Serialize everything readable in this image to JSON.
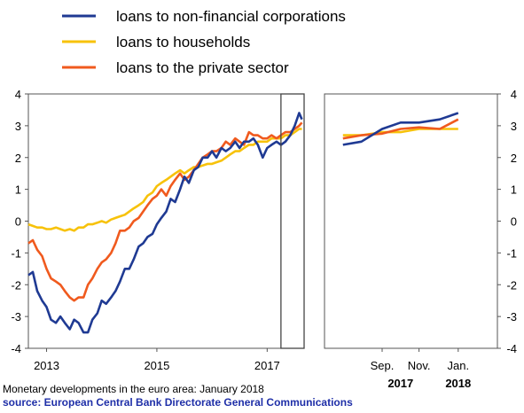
{
  "caption": {
    "title": "Monetary developments in the euro area: January 2018",
    "source": "source: European Central Bank Directorate General Communications"
  },
  "chart_data": {
    "type": "line",
    "legend_position": "top-left",
    "series_meta": [
      {
        "name": "loans to non-financial corporations",
        "color": "#1f3a93"
      },
      {
        "name": "loans to households",
        "color": "#f7c20a"
      },
      {
        "name": "loans to the private sector",
        "color": "#f05a1e"
      }
    ],
    "panels": [
      {
        "name": "left",
        "x_range": [
          2012.67,
          2017.67
        ],
        "ylim": [
          -4,
          4
        ],
        "yticks": [
          -4,
          -3,
          -2,
          -1,
          0,
          1,
          2,
          3,
          4
        ],
        "xtick_labels": [
          {
            "x": 2013,
            "label": "2013"
          },
          {
            "x": 2015,
            "label": "2015"
          },
          {
            "x": 2017,
            "label": "2017"
          }
        ],
        "grid": false,
        "highlight_box": {
          "x_from": 2017.25,
          "x_to": 2017.67
        },
        "series": [
          {
            "name": "loans to non-financial corporations",
            "x": [
              2012.67,
              2012.75,
              2012.83,
              2012.92,
              2013.0,
              2013.08,
              2013.17,
              2013.25,
              2013.33,
              2013.42,
              2013.5,
              2013.58,
              2013.67,
              2013.75,
              2013.83,
              2013.92,
              2014.0,
              2014.08,
              2014.17,
              2014.25,
              2014.33,
              2014.42,
              2014.5,
              2014.58,
              2014.67,
              2014.75,
              2014.83,
              2014.92,
              2015.0,
              2015.08,
              2015.17,
              2015.25,
              2015.33,
              2015.42,
              2015.5,
              2015.58,
              2015.67,
              2015.75,
              2015.83,
              2015.92,
              2016.0,
              2016.08,
              2016.17,
              2016.25,
              2016.33,
              2016.42,
              2016.5,
              2016.58,
              2016.67,
              2016.75,
              2016.83,
              2016.92,
              2017.0,
              2017.08,
              2017.17,
              2017.25,
              2017.33,
              2017.42,
              2017.5,
              2017.58,
              2017.63
            ],
            "values": [
              -1.7,
              -1.6,
              -2.2,
              -2.5,
              -2.7,
              -3.1,
              -3.2,
              -3.0,
              -3.2,
              -3.4,
              -3.1,
              -3.2,
              -3.5,
              -3.5,
              -3.1,
              -2.9,
              -2.5,
              -2.6,
              -2.4,
              -2.2,
              -1.9,
              -1.5,
              -1.5,
              -1.2,
              -0.8,
              -0.7,
              -0.5,
              -0.4,
              -0.1,
              0.1,
              0.3,
              0.7,
              0.6,
              1.0,
              1.4,
              1.2,
              1.6,
              1.7,
              2.0,
              2.0,
              2.2,
              2.0,
              2.3,
              2.2,
              2.3,
              2.5,
              2.3,
              2.5,
              2.5,
              2.6,
              2.4,
              2.0,
              2.3,
              2.4,
              2.5,
              2.4,
              2.5,
              2.7,
              3.0,
              3.4,
              3.2
            ]
          },
          {
            "name": "loans to households",
            "x": [
              2012.67,
              2012.75,
              2012.83,
              2012.92,
              2013.0,
              2013.08,
              2013.17,
              2013.25,
              2013.33,
              2013.42,
              2013.5,
              2013.58,
              2013.67,
              2013.75,
              2013.83,
              2013.92,
              2014.0,
              2014.08,
              2014.17,
              2014.25,
              2014.33,
              2014.42,
              2014.5,
              2014.58,
              2014.67,
              2014.75,
              2014.83,
              2014.92,
              2015.0,
              2015.08,
              2015.17,
              2015.25,
              2015.33,
              2015.42,
              2015.5,
              2015.58,
              2015.67,
              2015.75,
              2015.83,
              2015.92,
              2016.0,
              2016.08,
              2016.17,
              2016.25,
              2016.33,
              2016.42,
              2016.5,
              2016.58,
              2016.67,
              2016.75,
              2016.83,
              2016.92,
              2017.0,
              2017.08,
              2017.17,
              2017.25,
              2017.33,
              2017.42,
              2017.5,
              2017.58,
              2017.63
            ],
            "values": [
              -0.1,
              -0.15,
              -0.2,
              -0.2,
              -0.25,
              -0.25,
              -0.2,
              -0.25,
              -0.3,
              -0.25,
              -0.3,
              -0.2,
              -0.2,
              -0.1,
              -0.1,
              -0.05,
              0.0,
              -0.05,
              0.05,
              0.1,
              0.15,
              0.2,
              0.3,
              0.4,
              0.5,
              0.6,
              0.8,
              0.9,
              1.1,
              1.2,
              1.3,
              1.4,
              1.5,
              1.6,
              1.5,
              1.6,
              1.7,
              1.7,
              1.75,
              1.8,
              1.8,
              1.85,
              1.9,
              2.0,
              2.1,
              2.2,
              2.2,
              2.3,
              2.4,
              2.4,
              2.5,
              2.5,
              2.5,
              2.6,
              2.6,
              2.6,
              2.7,
              2.7,
              2.8,
              2.9,
              2.9
            ]
          },
          {
            "name": "loans to the private sector",
            "x": [
              2012.67,
              2012.75,
              2012.83,
              2012.92,
              2013.0,
              2013.08,
              2013.17,
              2013.25,
              2013.33,
              2013.42,
              2013.5,
              2013.58,
              2013.67,
              2013.75,
              2013.83,
              2013.92,
              2014.0,
              2014.08,
              2014.17,
              2014.25,
              2014.33,
              2014.42,
              2014.5,
              2014.58,
              2014.67,
              2014.75,
              2014.83,
              2014.92,
              2015.0,
              2015.08,
              2015.17,
              2015.25,
              2015.33,
              2015.42,
              2015.5,
              2015.58,
              2015.67,
              2015.75,
              2015.83,
              2015.92,
              2016.0,
              2016.08,
              2016.17,
              2016.25,
              2016.33,
              2016.42,
              2016.5,
              2016.58,
              2016.67,
              2016.75,
              2016.83,
              2016.92,
              2017.0,
              2017.08,
              2017.17,
              2017.25,
              2017.33,
              2017.42,
              2017.5,
              2017.58,
              2017.63
            ],
            "values": [
              -0.7,
              -0.6,
              -0.9,
              -1.1,
              -1.5,
              -1.8,
              -1.9,
              -2.0,
              -2.2,
              -2.4,
              -2.5,
              -2.4,
              -2.4,
              -2.0,
              -1.8,
              -1.5,
              -1.3,
              -1.2,
              -1.0,
              -0.7,
              -0.3,
              -0.3,
              -0.2,
              0.0,
              0.1,
              0.3,
              0.5,
              0.7,
              0.8,
              1.0,
              0.8,
              1.1,
              1.3,
              1.5,
              1.3,
              1.4,
              1.6,
              1.8,
              2.0,
              2.1,
              2.2,
              2.2,
              2.3,
              2.5,
              2.4,
              2.6,
              2.5,
              2.4,
              2.8,
              2.7,
              2.7,
              2.6,
              2.6,
              2.7,
              2.6,
              2.7,
              2.8,
              2.8,
              2.9,
              3.0,
              3.1
            ]
          }
        ]
      },
      {
        "name": "right",
        "x_range": [
          2017.42,
          2018.17
        ],
        "ylim": [
          -4,
          4
        ],
        "yticks": [
          -4,
          -3,
          -2,
          -1,
          0,
          1,
          2,
          3,
          4
        ],
        "xtick_labels": [
          {
            "x": 2017.67,
            "label": "Sep."
          },
          {
            "x": 2017.83,
            "label": "Nov."
          },
          {
            "x": 2018.0,
            "label": "Jan."
          }
        ],
        "year_labels": [
          {
            "x": 2017.75,
            "label": "2017"
          },
          {
            "x": 2018.0,
            "label": "2018"
          }
        ],
        "grid": false,
        "series": [
          {
            "name": "loans to non-financial corporations",
            "x": [
              2017.5,
              2017.58,
              2017.67,
              2017.75,
              2017.83,
              2017.92,
              2018.0
            ],
            "values": [
              2.4,
              2.5,
              2.9,
              3.1,
              3.1,
              3.2,
              3.4
            ]
          },
          {
            "name": "loans to households",
            "x": [
              2017.5,
              2017.58,
              2017.67,
              2017.75,
              2017.83,
              2017.92,
              2018.0
            ],
            "values": [
              2.7,
              2.7,
              2.8,
              2.8,
              2.9,
              2.9,
              2.9
            ]
          },
          {
            "name": "loans to the private sector",
            "x": [
              2017.5,
              2017.58,
              2017.67,
              2017.75,
              2017.83,
              2017.92,
              2018.0
            ],
            "values": [
              2.6,
              2.7,
              2.75,
              2.9,
              2.95,
              2.9,
              3.2
            ]
          }
        ]
      }
    ]
  }
}
